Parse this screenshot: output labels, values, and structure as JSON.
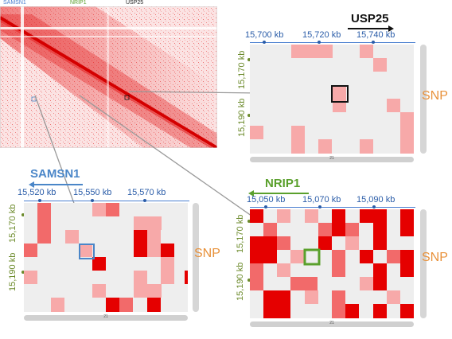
{
  "main_map": {
    "top_labels": [
      {
        "text": "SAMSN1",
        "color": "#4a7fd0"
      },
      {
        "text": "NRIP1",
        "color": "#5aa02c"
      },
      {
        "text": "USP25",
        "color": "#222222"
      }
    ]
  },
  "panels": {
    "usp25": {
      "gene": "USP25",
      "gene_color": "#111111",
      "arrow_color": "#111111",
      "x_ticks": [
        "15,700 kb",
        "15,720 kb",
        "15,740 kb"
      ],
      "y_ticks": [
        "15,170 kb",
        "15,190 kb"
      ],
      "snp_label": "SNP",
      "scroll_label": "21"
    },
    "samsn1": {
      "gene": "SAMSN1",
      "gene_color": "#4a86c8",
      "arrow_color": "#4a86c8",
      "x_ticks": [
        "15,520 kb",
        "15,550 kb",
        "15,570 kb"
      ],
      "y_ticks": [
        "15,170 kb",
        "15,190 kb"
      ],
      "snp_label": "SNP",
      "scroll_label": "21"
    },
    "nrip1": {
      "gene": "NRIP1",
      "gene_color": "#5aa02c",
      "arrow_color": "#5aa02c",
      "x_ticks": [
        "15,050 kb",
        "15,070 kb",
        "15,090 kb"
      ],
      "y_ticks": [
        "15,170 kb",
        "15,190 kb"
      ],
      "snp_label": "SNP",
      "scroll_label": "21"
    }
  },
  "colors": {
    "cell_dark": "#e50000",
    "cell_mid": "#f26a6a",
    "cell_light": "#f7a9a9",
    "grid_bg": "#eeeeee",
    "snp": "#e8913a",
    "axis_text": "#2a5ca8",
    "y_text": "#6b8a2a"
  }
}
